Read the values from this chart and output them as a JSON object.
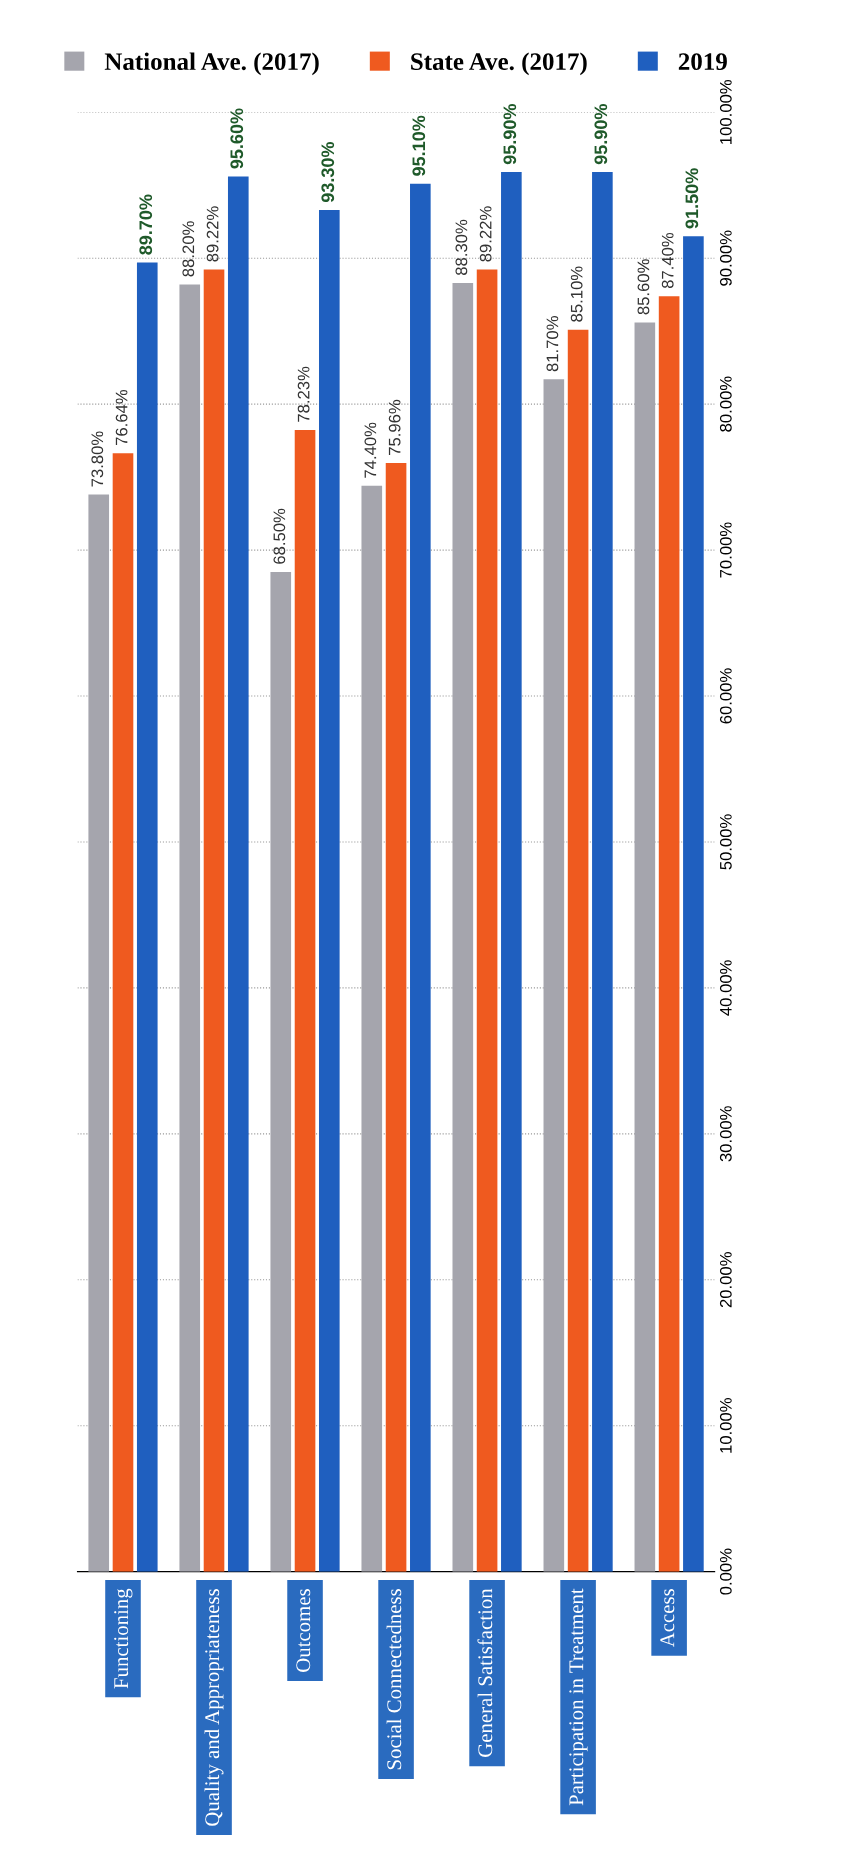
{
  "chart_data": {
    "type": "bar",
    "categories": [
      "Functioning",
      "Quality and Appropriateness",
      "Outcomes",
      "Social Connectedness",
      "General Satisfaction",
      "Participation in Treatment",
      "Access"
    ],
    "series": [
      {
        "name": "National Ave. (2017)",
        "color": "#a5a5ad",
        "values": [
          73.8,
          88.2,
          68.5,
          74.4,
          88.3,
          81.7,
          85.6
        ],
        "value_labels": [
          "73.80%",
          "88.20%",
          "68.50%",
          "74.40%",
          "88.30%",
          "81.70%",
          "85.60%"
        ]
      },
      {
        "name": "State Ave. (2017)",
        "color": "#ef5a1f",
        "values": [
          76.64,
          89.22,
          78.23,
          75.96,
          89.22,
          85.1,
          87.4
        ],
        "value_labels": [
          "76.64%",
          "89.22%",
          "78.23%",
          "75.96%",
          "89.22%",
          "85.10%",
          "87.40%"
        ]
      },
      {
        "name": "2019",
        "color": "#1f5fbf",
        "values": [
          89.7,
          95.6,
          93.3,
          95.1,
          95.9,
          95.9,
          91.5
        ],
        "value_labels": [
          "89.70%",
          "95.60%",
          "93.30%",
          "95.10%",
          "95.90%",
          "95.90%",
          "91.50%"
        ]
      }
    ],
    "ylim": [
      0,
      100
    ],
    "yticks": [
      {
        "value": 0,
        "label": "0.00%"
      },
      {
        "value": 10,
        "label": "10.00%"
      },
      {
        "value": 20,
        "label": "20.00%"
      },
      {
        "value": 30,
        "label": "30.00%"
      },
      {
        "value": 40,
        "label": "40.00%"
      },
      {
        "value": 50,
        "label": "50.00%"
      },
      {
        "value": 60,
        "label": "60.00%"
      },
      {
        "value": 70,
        "label": "70.00%"
      },
      {
        "value": 80,
        "label": "80.00%"
      },
      {
        "value": 90,
        "label": "90.00%"
      },
      {
        "value": 100,
        "label": "100.00%"
      }
    ],
    "grid": "y",
    "legend": "top"
  }
}
